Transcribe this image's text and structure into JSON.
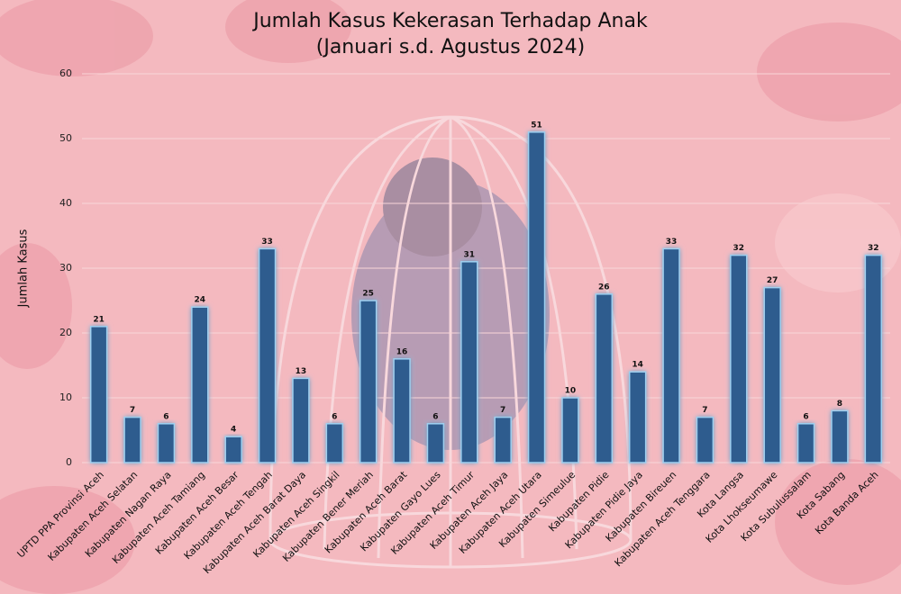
{
  "chart_data": {
    "type": "bar",
    "title": "Jumlah Kasus Kekerasan Terhadap Anak",
    "subtitle": "(Januari s.d. Agustus 2024)",
    "y_label": "Jumlah Kasus",
    "categories": [
      "UPTD PPA Provinsi Aceh",
      "Kabupaten Aceh Selatan",
      "Kabupaten Nagan Raya",
      "Kabupaten Aceh Tamiang",
      "Kabupaten Aceh Besar",
      "Kabupaten Aceh Tengah",
      "Kabupaten Aceh Barat Daya",
      "Kabupaten Aceh Singkil",
      "Kabupaten Bener Meriah",
      "Kabupaten Aceh Barat",
      "Kabupaten Gayo Lues",
      "Kabupaten Aceh Timur",
      "Kabupaten Aceh Jaya",
      "Kabupaten Aceh Utara",
      "Kabupaten Simeulue",
      "Kabupaten Pidie",
      "Kabupaten Pidie Jaya",
      "Kabupaten Bireuen",
      "Kabupaten Aceh Tenggara",
      "Kota Langsa",
      "Kota Lhokseumawe",
      "Kota Subulussalam",
      "Kota Sabang",
      "Kota Banda Aceh"
    ],
    "values": [
      21,
      7,
      6,
      24,
      4,
      33,
      13,
      6,
      25,
      16,
      6,
      31,
      7,
      51,
      10,
      26,
      14,
      33,
      7,
      32,
      27,
      6,
      8,
      32
    ],
    "color": "#2f5b8e",
    "ylim": [
      0,
      60
    ],
    "yticks": [
      0,
      10,
      20,
      30,
      40,
      50,
      60
    ],
    "grid": true
  }
}
